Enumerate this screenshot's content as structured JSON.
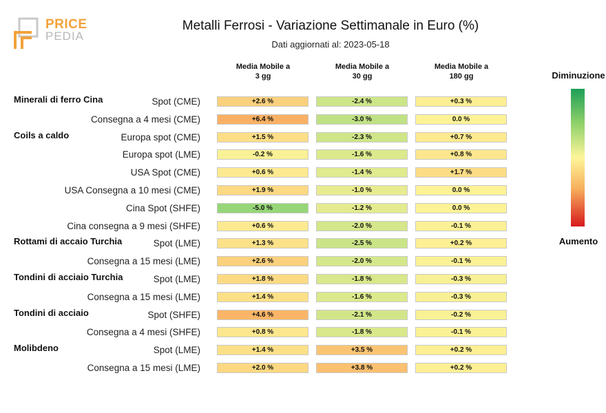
{
  "logo": {
    "text_top": "PRICE",
    "text_bottom": "PEDIA"
  },
  "chart_data": {
    "type": "table",
    "title": "Metalli Ferrosi - Variazione Settimanale in Euro (%)",
    "subtitle": "Dati aggiornati al: 2023-05-18",
    "columns": [
      {
        "line1": "Media Mobile a",
        "line2": "3 gg"
      },
      {
        "line1": "Media Mobile a",
        "line2": "30 gg"
      },
      {
        "line1": "Media Mobile a",
        "line2": "180 gg"
      }
    ],
    "rows": [
      {
        "group": "Minerali di ferro Cina",
        "label": "Spot (CME)",
        "values": [
          2.6,
          -2.4,
          0.3
        ],
        "text": [
          "+2.6 %",
          "-2.4 %",
          "+0.3 %"
        ]
      },
      {
        "group": "",
        "label": "Consegna a 4 mesi (CME)",
        "values": [
          6.4,
          -3.0,
          0.0
        ],
        "text": [
          "+6.4 %",
          "-3.0 %",
          "0.0 %"
        ]
      },
      {
        "group": "Coils a caldo",
        "label": "Europa spot (CME)",
        "values": [
          1.5,
          -2.3,
          0.7
        ],
        "text": [
          "+1.5 %",
          "-2.3 %",
          "+0.7 %"
        ]
      },
      {
        "group": "",
        "label": "Europa spot (LME)",
        "values": [
          -0.2,
          -1.6,
          0.8
        ],
        "text": [
          "-0.2 %",
          "-1.6 %",
          "+0.8 %"
        ]
      },
      {
        "group": "",
        "label": "USA Spot (CME)",
        "values": [
          0.6,
          -1.4,
          1.7
        ],
        "text": [
          "+0.6 %",
          "-1.4 %",
          "+1.7 %"
        ]
      },
      {
        "group": "",
        "label": "USA Consegna a 10 mesi (CME)",
        "values": [
          1.9,
          -1.0,
          0.0
        ],
        "text": [
          "+1.9 %",
          "-1.0 %",
          "0.0 %"
        ]
      },
      {
        "group": "",
        "label": "Cina Spot (SHFE)",
        "values": [
          -5.0,
          -1.2,
          0.0
        ],
        "text": [
          "-5.0 %",
          "-1.2 %",
          "0.0 %"
        ]
      },
      {
        "group": "",
        "label": "Cina consegna a 9 mesi (SHFE)",
        "values": [
          0.6,
          -2.0,
          -0.1
        ],
        "text": [
          "+0.6 %",
          "-2.0 %",
          "-0.1 %"
        ]
      },
      {
        "group": "Rottami di accaio Turchia",
        "label": "Spot (LME)",
        "values": [
          1.3,
          -2.5,
          0.2
        ],
        "text": [
          "+1.3 %",
          "-2.5 %",
          "+0.2 %"
        ]
      },
      {
        "group": "",
        "label": "Consegna a 15 mesi (LME)",
        "values": [
          2.6,
          -2.0,
          -0.1
        ],
        "text": [
          "+2.6 %",
          "-2.0 %",
          "-0.1 %"
        ]
      },
      {
        "group": "Tondini di acciaio Turchia",
        "label": "Spot (LME)",
        "values": [
          1.8,
          -1.8,
          -0.3
        ],
        "text": [
          "+1.8 %",
          "-1.8 %",
          "-0.3 %"
        ]
      },
      {
        "group": "",
        "label": "Consegna a 15 mesi (LME)",
        "values": [
          1.4,
          -1.6,
          -0.3
        ],
        "text": [
          "+1.4 %",
          "-1.6 %",
          "-0.3 %"
        ]
      },
      {
        "group": "Tondini di acciaio",
        "label": "Spot (SHFE)",
        "values": [
          4.6,
          -2.1,
          -0.2
        ],
        "text": [
          "+4.6 %",
          "-2.1 %",
          "-0.2 %"
        ]
      },
      {
        "group": "",
        "label": "Consegna a 4 mesi (SHFE)",
        "values": [
          0.8,
          -1.8,
          -0.1
        ],
        "text": [
          "+0.8 %",
          "-1.8 %",
          "-0.1 %"
        ]
      },
      {
        "group": "Molibdeno",
        "label": "Spot (LME)",
        "values": [
          1.4,
          3.5,
          0.2
        ],
        "text": [
          "+1.4 %",
          "+3.5 %",
          "+0.2 %"
        ]
      },
      {
        "group": "",
        "label": "Consegna a 15 mesi (LME)",
        "values": [
          2.0,
          3.8,
          0.2
        ],
        "text": [
          "+2.0 %",
          "+3.8 %",
          "+0.2 %"
        ]
      }
    ],
    "legend": {
      "top_label": "Diminuzione",
      "bottom_label": "Aumento"
    },
    "color_scale": {
      "decrease": "#1f9e57",
      "neutral": "#fdf59a",
      "increase": "#d7191c"
    }
  }
}
